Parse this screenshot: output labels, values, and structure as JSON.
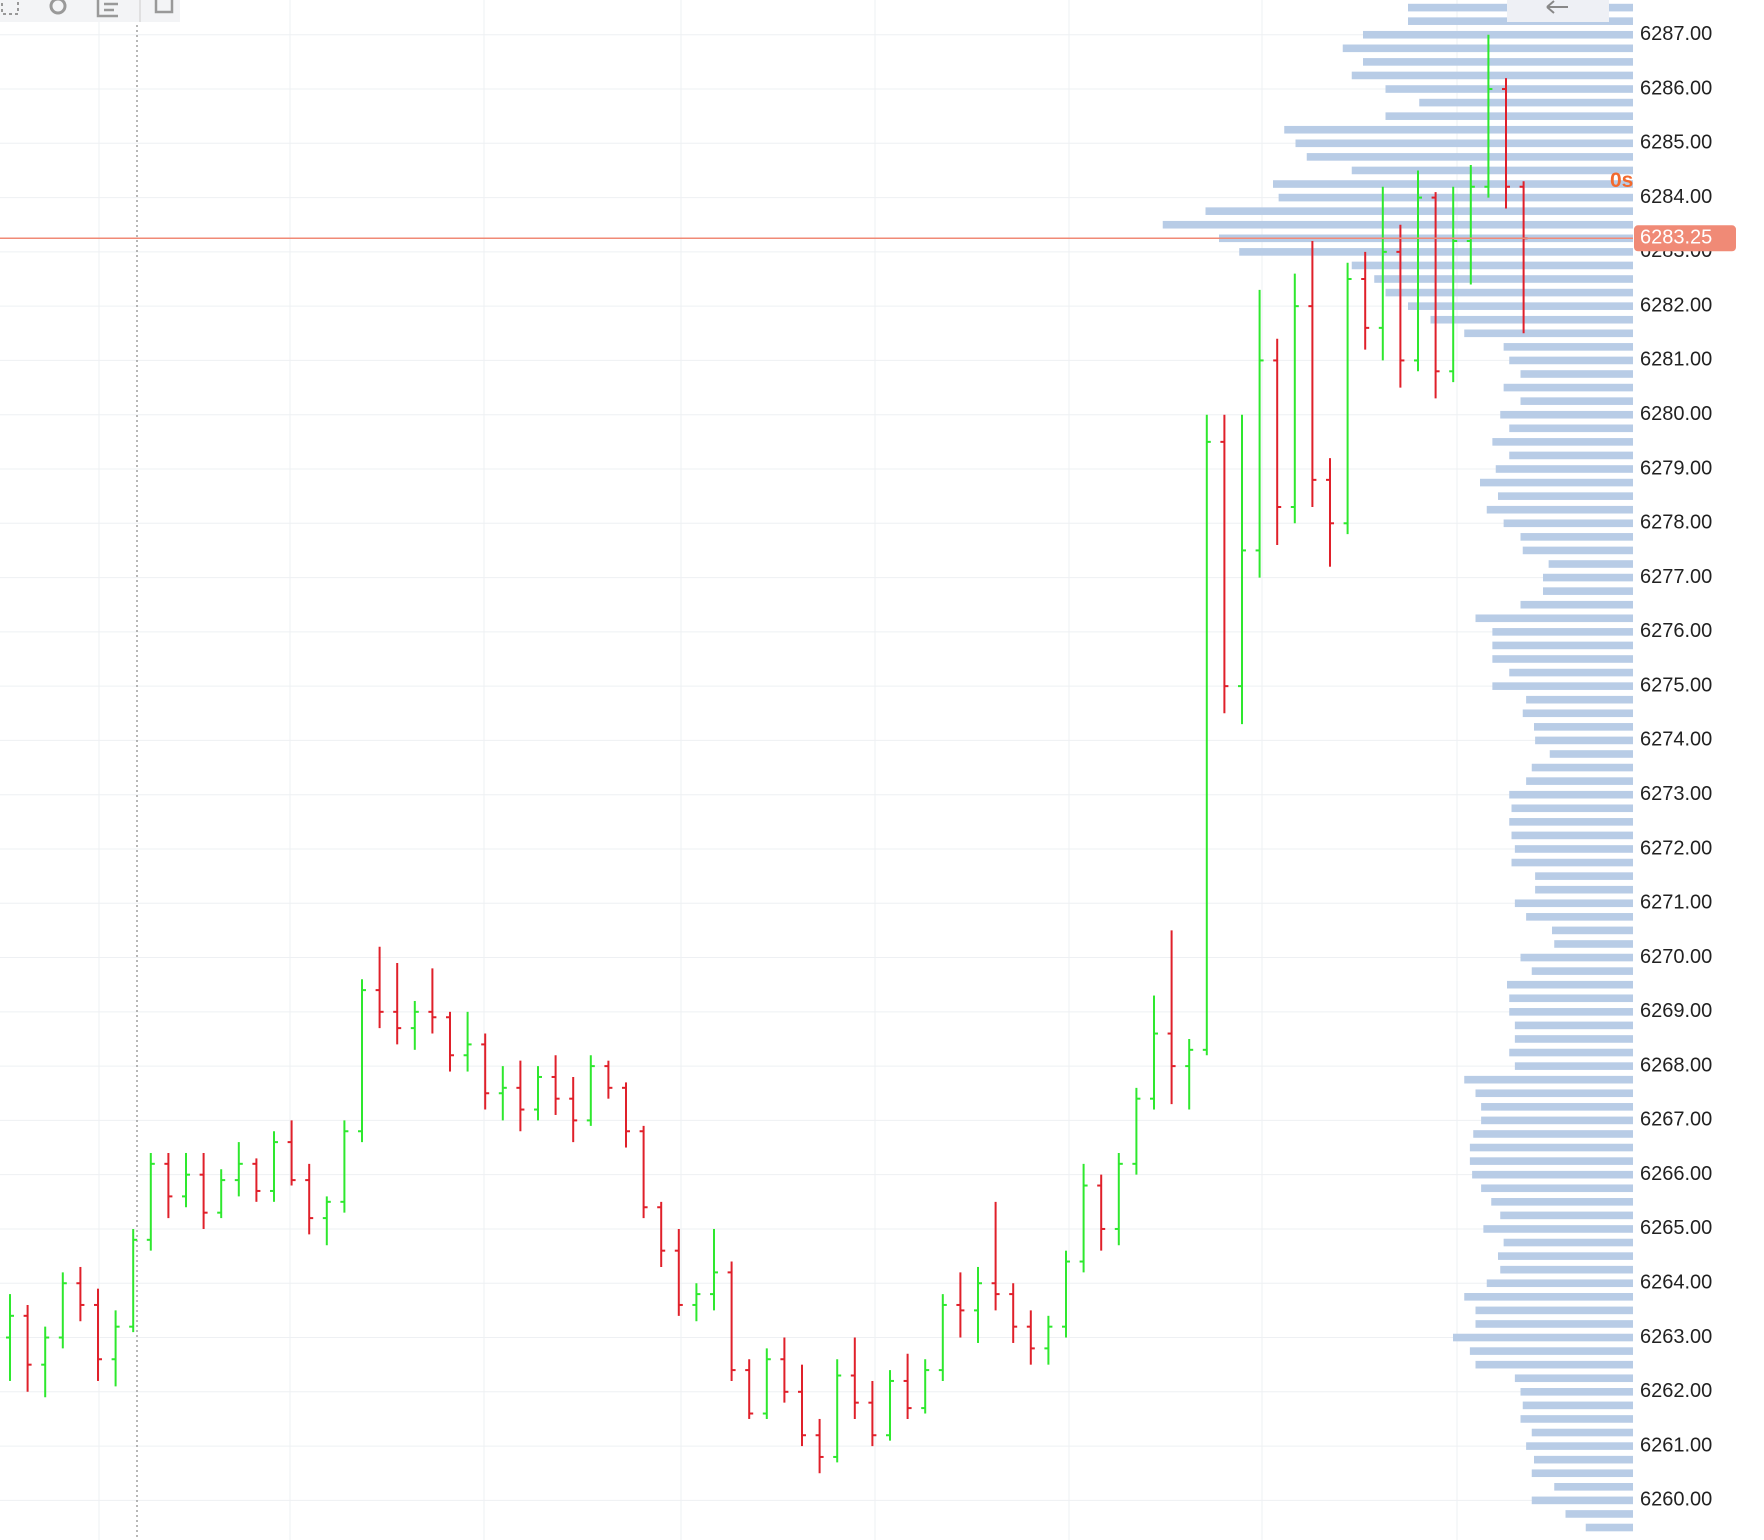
{
  "chart_data": {
    "type": "ohlc",
    "up_color": "#2ee82e",
    "down_color": "#e0202a",
    "grid": true,
    "ylim": [
      6259.27,
      6287.64
    ],
    "yticks": [
      {
        "value": 6287,
        "label": "6287.00"
      },
      {
        "value": 6286,
        "label": "6286.00"
      },
      {
        "value": 6285,
        "label": "6285.00"
      },
      {
        "value": 6284,
        "label": "6284.00"
      },
      {
        "value": 6283,
        "label": "6283.00"
      },
      {
        "value": 6282,
        "label": "6282.00"
      },
      {
        "value": 6281,
        "label": "6281.00"
      },
      {
        "value": 6280,
        "label": "6280.00"
      },
      {
        "value": 6279,
        "label": "6279.00"
      },
      {
        "value": 6278,
        "label": "6278.00"
      },
      {
        "value": 6277,
        "label": "6277.00"
      },
      {
        "value": 6276,
        "label": "6276.00"
      },
      {
        "value": 6275,
        "label": "6275.00"
      },
      {
        "value": 6274,
        "label": "6274.00"
      },
      {
        "value": 6273,
        "label": "6273.00"
      },
      {
        "value": 6272,
        "label": "6272.00"
      },
      {
        "value": 6271,
        "label": "6271.00"
      },
      {
        "value": 6270,
        "label": "6270.00"
      },
      {
        "value": 6269,
        "label": "6269.00"
      },
      {
        "value": 6268,
        "label": "6268.00"
      },
      {
        "value": 6267,
        "label": "6267.00"
      },
      {
        "value": 6266,
        "label": "6266.00"
      },
      {
        "value": 6265,
        "label": "6265.00"
      },
      {
        "value": 6264,
        "label": "6264.00"
      },
      {
        "value": 6263,
        "label": "6263.00"
      },
      {
        "value": 6262,
        "label": "6262.00"
      },
      {
        "value": 6261,
        "label": "6261.00"
      },
      {
        "value": 6260,
        "label": "6260.00"
      }
    ],
    "last_price": {
      "value": 6283.25,
      "color": "#f08a76"
    },
    "countdown": "0s",
    "bars": [
      [
        6263.0,
        6263.8,
        6262.2,
        6263.4
      ],
      [
        6263.4,
        6263.6,
        6262.0,
        6262.5
      ],
      [
        6262.5,
        6263.2,
        6261.9,
        6263.0
      ],
      [
        6263.0,
        6264.2,
        6262.8,
        6264.0
      ],
      [
        6264.0,
        6264.3,
        6263.3,
        6263.6
      ],
      [
        6263.6,
        6263.9,
        6262.2,
        6262.6
      ],
      [
        6262.6,
        6263.5,
        6262.1,
        6263.2
      ],
      [
        6263.2,
        6265.0,
        6263.1,
        6264.8
      ],
      [
        6264.8,
        6266.4,
        6264.6,
        6266.2
      ],
      [
        6266.2,
        6266.4,
        6265.2,
        6265.6
      ],
      [
        6265.6,
        6266.4,
        6265.4,
        6266.0
      ],
      [
        6266.0,
        6266.4,
        6265.0,
        6265.3
      ],
      [
        6265.3,
        6266.1,
        6265.2,
        6265.9
      ],
      [
        6265.9,
        6266.6,
        6265.6,
        6266.2
      ],
      [
        6266.2,
        6266.3,
        6265.5,
        6265.7
      ],
      [
        6265.7,
        6266.8,
        6265.5,
        6266.6
      ],
      [
        6266.6,
        6267.0,
        6265.8,
        6265.9
      ],
      [
        6265.9,
        6266.2,
        6264.9,
        6265.2
      ],
      [
        6265.2,
        6265.6,
        6264.7,
        6265.5
      ],
      [
        6265.5,
        6267.0,
        6265.3,
        6266.8
      ],
      [
        6266.8,
        6269.6,
        6266.6,
        6269.4
      ],
      [
        6269.4,
        6270.2,
        6268.7,
        6269.0
      ],
      [
        6269.0,
        6269.9,
        6268.4,
        6268.7
      ],
      [
        6268.7,
        6269.2,
        6268.3,
        6269.0
      ],
      [
        6269.0,
        6269.8,
        6268.6,
        6268.9
      ],
      [
        6268.9,
        6269.0,
        6267.9,
        6268.2
      ],
      [
        6268.2,
        6269.0,
        6267.9,
        6268.4
      ],
      [
        6268.4,
        6268.6,
        6267.2,
        6267.5
      ],
      [
        6267.5,
        6268.0,
        6267.0,
        6267.6
      ],
      [
        6267.6,
        6268.1,
        6266.8,
        6267.2
      ],
      [
        6267.2,
        6268.0,
        6267.0,
        6267.8
      ],
      [
        6267.8,
        6268.2,
        6267.1,
        6267.4
      ],
      [
        6267.4,
        6267.8,
        6266.6,
        6267.0
      ],
      [
        6267.0,
        6268.2,
        6266.9,
        6268.0
      ],
      [
        6268.0,
        6268.1,
        6267.4,
        6267.6
      ],
      [
        6267.6,
        6267.7,
        6266.5,
        6266.8
      ],
      [
        6266.8,
        6266.9,
        6265.2,
        6265.4
      ],
      [
        6265.4,
        6265.5,
        6264.3,
        6264.6
      ],
      [
        6264.6,
        6265.0,
        6263.4,
        6263.6
      ],
      [
        6263.6,
        6264.0,
        6263.3,
        6263.8
      ],
      [
        6263.8,
        6265.0,
        6263.5,
        6264.2
      ],
      [
        6264.2,
        6264.4,
        6262.2,
        6262.4
      ],
      [
        6262.4,
        6262.6,
        6261.5,
        6261.6
      ],
      [
        6261.6,
        6262.8,
        6261.5,
        6262.6
      ],
      [
        6262.6,
        6263.0,
        6261.8,
        6262.0
      ],
      [
        6262.0,
        6262.5,
        6261.0,
        6261.2
      ],
      [
        6261.2,
        6261.5,
        6260.5,
        6260.8
      ],
      [
        6260.8,
        6262.6,
        6260.7,
        6262.3
      ],
      [
        6262.3,
        6263.0,
        6261.5,
        6261.8
      ],
      [
        6261.8,
        6262.2,
        6261.0,
        6261.2
      ],
      [
        6261.2,
        6262.4,
        6261.1,
        6262.2
      ],
      [
        6262.2,
        6262.7,
        6261.5,
        6261.7
      ],
      [
        6261.7,
        6262.6,
        6261.6,
        6262.4
      ],
      [
        6262.4,
        6263.8,
        6262.2,
        6263.6
      ],
      [
        6263.6,
        6264.2,
        6263.0,
        6263.5
      ],
      [
        6263.5,
        6264.3,
        6262.9,
        6264.0
      ],
      [
        6264.0,
        6265.5,
        6263.5,
        6263.8
      ],
      [
        6263.8,
        6264.0,
        6262.9,
        6263.2
      ],
      [
        6263.2,
        6263.5,
        6262.5,
        6262.8
      ],
      [
        6262.8,
        6263.4,
        6262.5,
        6263.2
      ],
      [
        6263.2,
        6264.6,
        6263.0,
        6264.4
      ],
      [
        6264.4,
        6266.2,
        6264.2,
        6265.8
      ],
      [
        6265.8,
        6266.0,
        6264.6,
        6265.0
      ],
      [
        6265.0,
        6266.4,
        6264.7,
        6266.2
      ],
      [
        6266.2,
        6267.6,
        6266.0,
        6267.4
      ],
      [
        6267.4,
        6269.3,
        6267.2,
        6268.6
      ],
      [
        6268.6,
        6270.5,
        6267.3,
        6268.0
      ],
      [
        6268.0,
        6268.5,
        6267.2,
        6268.3
      ],
      [
        6268.3,
        6280.0,
        6268.2,
        6279.5
      ],
      [
        6279.5,
        6280.0,
        6274.5,
        6275.0
      ],
      [
        6275.0,
        6280.0,
        6274.3,
        6277.5
      ],
      [
        6277.5,
        6282.3,
        6277.0,
        6281.0
      ],
      [
        6281.0,
        6281.4,
        6277.6,
        6278.3
      ],
      [
        6278.3,
        6282.6,
        6278.0,
        6282.0
      ],
      [
        6282.0,
        6283.2,
        6278.3,
        6278.8
      ],
      [
        6278.8,
        6279.2,
        6277.2,
        6278.0
      ],
      [
        6278.0,
        6282.8,
        6277.8,
        6282.5
      ],
      [
        6282.5,
        6283.0,
        6281.2,
        6281.6
      ],
      [
        6281.6,
        6284.2,
        6281.0,
        6283.0
      ],
      [
        6283.0,
        6283.5,
        6280.5,
        6281.0
      ],
      [
        6281.0,
        6284.5,
        6280.8,
        6284.0
      ],
      [
        6284.0,
        6284.1,
        6280.3,
        6280.8
      ],
      [
        6280.8,
        6284.2,
        6280.6,
        6283.2
      ],
      [
        6283.2,
        6284.6,
        6282.4,
        6284.2
      ],
      [
        6284.2,
        6287.0,
        6284.0,
        6286.0
      ],
      [
        6286.0,
        6286.2,
        6283.8,
        6284.2
      ],
      [
        6284.2,
        6284.3,
        6281.5,
        6283.25
      ]
    ],
    "volume_profile": {
      "color": "#b8cce6",
      "prices": [
        6287.5,
        6287.25,
        6287,
        6286.75,
        6286.5,
        6286.25,
        6286,
        6285.75,
        6285.5,
        6285.25,
        6285,
        6284.75,
        6284.5,
        6284.25,
        6284,
        6283.75,
        6283.5,
        6283.25,
        6283,
        6282.75,
        6282.5,
        6282.25,
        6282,
        6281.75,
        6281.5,
        6281.25,
        6281,
        6280.75,
        6280.5,
        6280.25,
        6280,
        6279.75,
        6279.5,
        6279.25,
        6279,
        6278.75,
        6278.5,
        6278.25,
        6278,
        6277.75,
        6277.5,
        6277.25,
        6277,
        6276.75,
        6276.5,
        6276.25,
        6276,
        6275.75,
        6275.5,
        6275.25,
        6275,
        6274.75,
        6274.5,
        6274.25,
        6274,
        6273.75,
        6273.5,
        6273.25,
        6273,
        6272.75,
        6272.5,
        6272.25,
        6272,
        6271.75,
        6271.5,
        6271.25,
        6271,
        6270.75,
        6270.5,
        6270.25,
        6270,
        6269.75,
        6269.5,
        6269.25,
        6269,
        6268.75,
        6268.5,
        6268.25,
        6268,
        6267.75,
        6267.5,
        6267.25,
        6267,
        6266.75,
        6266.5,
        6266.25,
        6266,
        6265.75,
        6265.5,
        6265.25,
        6265,
        6264.75,
        6264.5,
        6264.25,
        6264,
        6263.75,
        6263.5,
        6263.25,
        6263,
        6262.75,
        6262.5,
        6262.25,
        6262,
        6261.75,
        6261.5,
        6261.25,
        6261,
        6260.75,
        6260.5,
        6260.25,
        6260,
        6259.75,
        6259.5
      ],
      "volumes": [
        200,
        200,
        240,
        258,
        240,
        250,
        220,
        190,
        220,
        310,
        300,
        290,
        250,
        320,
        315,
        380,
        418,
        368,
        350,
        250,
        230,
        220,
        200,
        180,
        150,
        115,
        110,
        100,
        115,
        100,
        118,
        110,
        125,
        110,
        122,
        136,
        120,
        130,
        115,
        100,
        98,
        75,
        80,
        80,
        100,
        140,
        125,
        125,
        125,
        110,
        125,
        95,
        98,
        88,
        87,
        74,
        90,
        95,
        110,
        108,
        110,
        108,
        105,
        108,
        87,
        87,
        105,
        95,
        72,
        70,
        100,
        90,
        112,
        110,
        110,
        105,
        105,
        110,
        105,
        150,
        140,
        135,
        135,
        142,
        145,
        145,
        143,
        135,
        126,
        118,
        133,
        115,
        120,
        118,
        130,
        150,
        140,
        140,
        160,
        145,
        140,
        105,
        100,
        98,
        100,
        90,
        95,
        88,
        90,
        70,
        90,
        60,
        42
      ]
    }
  }
}
